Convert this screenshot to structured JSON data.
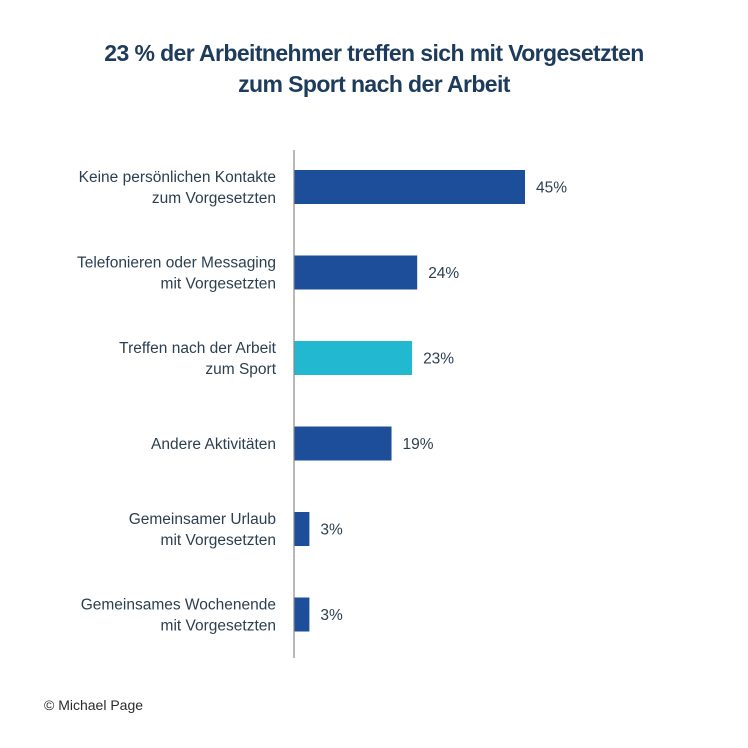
{
  "chart_data": {
    "type": "bar",
    "orientation": "horizontal",
    "title_lines": [
      "23 % der Arbeitnehmer treffen sich mit  Vorgesetzten",
      "zum Sport nach der Arbeit"
    ],
    "categories": [
      [
        "Keine persönlichen Kontakte",
        "zum Vorgesetzten"
      ],
      [
        "Telefonieren oder Messaging",
        "mit Vorgesetzten"
      ],
      [
        "Treffen nach der Arbeit",
        "zum Sport"
      ],
      [
        "Andere Aktivitäten"
      ],
      [
        "Gemeinsamer Urlaub",
        "mit Vorgesetzten"
      ],
      [
        "Gemeinsames Wochenende",
        "mit Vorgesetzten"
      ]
    ],
    "values": [
      45,
      24,
      23,
      19,
      3,
      3
    ],
    "value_labels": [
      "45%",
      "24%",
      "23%",
      "19%",
      "3%",
      "3%"
    ],
    "highlight_index": 2,
    "unit": "%",
    "xlim": [
      0,
      50
    ],
    "xlabel": "",
    "ylabel": "",
    "grid": false,
    "legend": "none"
  },
  "colors": {
    "bar": "#1c4e9a",
    "highlight": "#22b8cf",
    "axis": "#8a8a8a",
    "text": "#2b3f52",
    "title": "#1d3b5c"
  },
  "footer": {
    "copyright": "© Michael Page"
  }
}
